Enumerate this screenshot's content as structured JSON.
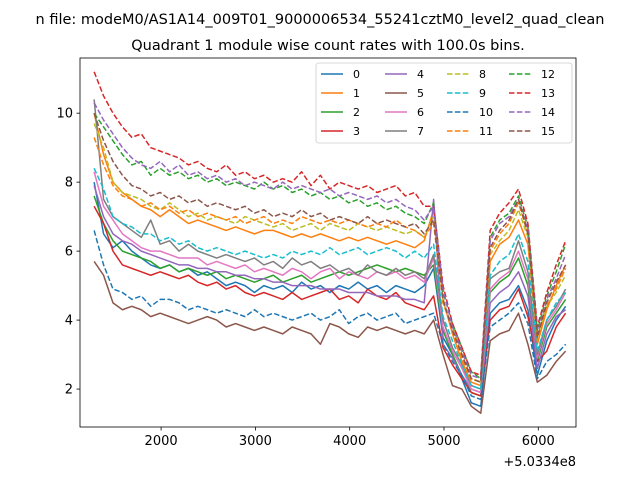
{
  "chart_data": {
    "type": "line",
    "title_top": "n file: modeM0/AS1A14_009T01_9000006534_55241cztM0_level2_quad_clean",
    "title": "Quadrant 1 module wise count rates with 100.0s bins.",
    "xlabel": "",
    "ylabel": "",
    "x_offset_label": "+5.0334e8",
    "xlim": [
      1140,
      6400
    ],
    "ylim": [
      0.9,
      11.6
    ],
    "xticks": [
      2000,
      3000,
      4000,
      5000,
      6000
    ],
    "yticks": [
      2,
      4,
      6,
      8,
      10
    ],
    "grid": false,
    "legend_placement": "upper-right",
    "x": [
      1290,
      1390,
      1490,
      1590,
      1690,
      1790,
      1890,
      1990,
      2090,
      2190,
      2290,
      2390,
      2490,
      2590,
      2690,
      2790,
      2890,
      2990,
      3090,
      3190,
      3290,
      3390,
      3490,
      3590,
      3690,
      3790,
      3890,
      3990,
      4090,
      4190,
      4290,
      4390,
      4490,
      4590,
      4690,
      4790,
      4890,
      4990,
      5090,
      5190,
      5290,
      5390,
      5490,
      5590,
      5690,
      5790,
      5890,
      5990,
      6090,
      6190,
      6290
    ],
    "series": [
      {
        "name": "0",
        "color": "#1f77b4",
        "dash": "solid",
        "values": [
          8.0,
          6.5,
          6.1,
          6.3,
          6.0,
          5.8,
          5.6,
          5.5,
          5.6,
          5.4,
          5.5,
          5.3,
          5.4,
          5.2,
          5.0,
          5.1,
          5.0,
          4.8,
          5.0,
          4.9,
          5.0,
          4.8,
          5.1,
          4.9,
          5.0,
          4.8,
          5.0,
          4.9,
          5.1,
          4.9,
          5.0,
          4.8,
          5.0,
          4.9,
          4.8,
          5.0,
          5.5,
          3.5,
          3.0,
          2.3,
          1.6,
          1.5,
          4.2,
          4.5,
          4.6,
          5.0,
          4.3,
          2.4,
          3.4,
          4.0,
          4.4
        ]
      },
      {
        "name": "1",
        "color": "#ff7f0e",
        "dash": "solid",
        "values": [
          10.0,
          8.8,
          8.0,
          7.7,
          7.5,
          7.3,
          7.2,
          7.0,
          7.2,
          7.0,
          6.8,
          6.9,
          6.8,
          6.7,
          6.6,
          6.7,
          6.6,
          6.5,
          6.6,
          6.6,
          6.5,
          6.4,
          6.5,
          6.4,
          6.5,
          6.4,
          6.3,
          6.4,
          6.3,
          6.4,
          6.3,
          6.2,
          6.3,
          6.2,
          6.1,
          6.3,
          7.2,
          4.6,
          3.6,
          2.8,
          2.2,
          2.1,
          5.7,
          6.2,
          6.4,
          6.9,
          6.2,
          3.3,
          4.3,
          5.0,
          5.6
        ]
      },
      {
        "name": "2",
        "color": "#2ca02c",
        "dash": "solid",
        "values": [
          7.6,
          6.8,
          6.3,
          6.0,
          5.9,
          5.8,
          5.7,
          5.5,
          5.6,
          5.4,
          5.5,
          5.4,
          5.3,
          5.4,
          5.2,
          5.3,
          5.2,
          5.1,
          5.2,
          5.3,
          5.1,
          5.2,
          5.3,
          5.1,
          5.2,
          5.3,
          5.4,
          5.3,
          5.4,
          5.5,
          5.6,
          5.5,
          5.4,
          5.5,
          5.4,
          5.3,
          5.6,
          3.7,
          3.0,
          2.4,
          1.9,
          1.8,
          4.8,
          5.1,
          5.3,
          5.8,
          5.0,
          2.8,
          3.8,
          4.2,
          4.6
        ]
      },
      {
        "name": "3",
        "color": "#d62728",
        "dash": "solid",
        "values": [
          7.3,
          6.8,
          6.0,
          5.6,
          5.5,
          5.4,
          5.3,
          5.4,
          5.3,
          5.2,
          5.3,
          5.1,
          5.0,
          5.1,
          4.9,
          5.0,
          4.8,
          4.7,
          4.8,
          4.7,
          4.6,
          4.8,
          4.6,
          4.7,
          4.8,
          4.9,
          4.6,
          4.7,
          4.5,
          4.9,
          4.7,
          4.6,
          4.8,
          4.5,
          4.4,
          4.3,
          4.7,
          3.2,
          2.7,
          2.3,
          1.9,
          1.8,
          4.0,
          4.3,
          4.4,
          4.9,
          4.1,
          2.8,
          3.1,
          3.8,
          4.2
        ]
      },
      {
        "name": "4",
        "color": "#9467bd",
        "dash": "solid",
        "values": [
          7.9,
          7.0,
          6.5,
          6.3,
          6.2,
          6.0,
          5.9,
          5.8,
          5.7,
          5.6,
          5.6,
          5.5,
          5.5,
          5.4,
          5.4,
          5.3,
          5.3,
          5.2,
          5.2,
          5.1,
          5.1,
          5.0,
          5.0,
          5.0,
          4.9,
          4.9,
          4.9,
          4.8,
          4.8,
          4.8,
          4.7,
          4.7,
          4.7,
          4.6,
          4.6,
          4.5,
          7.5,
          3.3,
          2.9,
          2.4,
          2.0,
          1.9,
          4.5,
          4.8,
          5.0,
          5.4,
          4.7,
          2.6,
          3.6,
          4.1,
          4.3
        ]
      },
      {
        "name": "5",
        "color": "#8c564b",
        "dash": "solid",
        "values": [
          5.7,
          5.3,
          4.5,
          4.3,
          4.4,
          4.3,
          4.1,
          4.2,
          4.1,
          4.0,
          3.9,
          4.0,
          4.1,
          4.0,
          3.8,
          3.9,
          3.8,
          3.7,
          3.8,
          3.7,
          3.6,
          3.8,
          3.7,
          3.6,
          3.3,
          3.9,
          3.8,
          3.6,
          3.5,
          3.8,
          3.7,
          3.8,
          3.7,
          3.6,
          3.7,
          3.6,
          4.0,
          3.0,
          2.1,
          2.0,
          1.5,
          1.3,
          3.4,
          3.6,
          3.7,
          4.2,
          3.3,
          2.2,
          2.4,
          2.8,
          3.1
        ]
      },
      {
        "name": "6",
        "color": "#e377c2",
        "dash": "solid",
        "values": [
          8.3,
          7.3,
          6.9,
          6.5,
          6.3,
          6.1,
          6.0,
          6.0,
          5.9,
          5.8,
          5.8,
          5.8,
          5.6,
          5.7,
          5.6,
          5.5,
          5.6,
          5.4,
          5.5,
          5.4,
          5.3,
          5.5,
          5.4,
          5.2,
          5.4,
          5.5,
          5.2,
          5.4,
          5.3,
          5.2,
          5.4,
          5.3,
          5.4,
          5.2,
          5.3,
          5.1,
          5.8,
          3.8,
          3.1,
          2.6,
          2.0,
          1.9,
          4.9,
          5.2,
          5.4,
          6.0,
          5.2,
          2.9,
          3.9,
          4.3,
          4.8
        ]
      },
      {
        "name": "7",
        "color": "#7f7f7f",
        "dash": "solid",
        "values": [
          10.4,
          7.5,
          7.0,
          6.8,
          6.6,
          6.4,
          6.9,
          6.2,
          6.3,
          6.0,
          6.2,
          6.0,
          5.9,
          5.8,
          5.9,
          5.8,
          5.7,
          5.8,
          5.6,
          5.7,
          5.5,
          5.8,
          5.6,
          5.7,
          5.5,
          5.6,
          5.4,
          5.5,
          5.3,
          5.6,
          5.4,
          5.3,
          5.5,
          5.3,
          5.4,
          5.2,
          5.9,
          4.0,
          3.2,
          2.7,
          2.1,
          2.0,
          5.2,
          5.4,
          5.5,
          6.3,
          5.4,
          3.0,
          4.0,
          4.4,
          4.9
        ]
      },
      {
        "name": "8",
        "color": "#bcbd22",
        "dash": "dashed",
        "values": [
          9.7,
          9.0,
          8.0,
          7.7,
          7.6,
          7.5,
          7.3,
          7.2,
          7.4,
          7.2,
          7.0,
          7.1,
          6.9,
          7.0,
          6.9,
          6.8,
          7.0,
          6.9,
          6.8,
          6.7,
          6.8,
          6.6,
          6.7,
          6.8,
          6.6,
          6.8,
          6.7,
          6.6,
          6.8,
          6.7,
          6.6,
          6.7,
          6.6,
          6.5,
          6.6,
          6.4,
          7.0,
          4.5,
          3.8,
          3.0,
          2.3,
          2.2,
          5.9,
          6.3,
          6.6,
          7.2,
          6.4,
          3.5,
          4.4,
          4.8,
          5.3
        ]
      },
      {
        "name": "9",
        "color": "#17becf",
        "dash": "dashed",
        "values": [
          8.4,
          7.8,
          7.0,
          6.8,
          6.7,
          6.5,
          6.5,
          6.3,
          6.4,
          6.2,
          6.3,
          6.1,
          6.0,
          6.1,
          6.0,
          5.9,
          6.0,
          5.9,
          5.8,
          5.9,
          5.8,
          6.0,
          5.9,
          6.0,
          5.9,
          6.1,
          5.9,
          6.0,
          6.1,
          5.9,
          6.0,
          6.1,
          6.0,
          5.8,
          6.0,
          5.8,
          6.2,
          4.1,
          3.4,
          2.7,
          2.1,
          2.0,
          5.3,
          5.7,
          5.9,
          6.5,
          5.7,
          3.1,
          4.0,
          4.5,
          4.8
        ]
      },
      {
        "name": "10",
        "color": "#1f77b4",
        "dash": "dashed",
        "values": [
          6.6,
          5.6,
          4.9,
          4.8,
          4.6,
          4.7,
          4.4,
          4.6,
          4.6,
          4.5,
          4.3,
          4.4,
          4.3,
          4.2,
          4.3,
          4.2,
          4.1,
          4.3,
          4.1,
          4.2,
          4.1,
          4.0,
          4.1,
          4.2,
          4.0,
          4.1,
          4.3,
          3.9,
          4.1,
          4.2,
          4.0,
          4.1,
          4.2,
          3.9,
          4.0,
          4.1,
          4.2,
          3.3,
          2.8,
          2.4,
          1.8,
          1.7,
          3.8,
          4.0,
          4.2,
          4.5,
          3.9,
          2.3,
          2.8,
          3.0,
          3.3
        ]
      },
      {
        "name": "11",
        "color": "#ff7f0e",
        "dash": "dashed",
        "values": [
          9.3,
          8.5,
          7.9,
          7.6,
          7.5,
          7.3,
          7.4,
          7.2,
          7.3,
          7.1,
          7.2,
          7.0,
          7.1,
          7.0,
          6.9,
          7.0,
          6.8,
          6.9,
          7.0,
          6.8,
          6.9,
          6.8,
          7.0,
          6.9,
          6.8,
          6.9,
          6.8,
          6.9,
          6.8,
          6.7,
          6.8,
          6.7,
          6.9,
          6.7,
          6.6,
          6.4,
          6.8,
          4.5,
          3.7,
          2.9,
          2.3,
          2.2,
          6.0,
          6.5,
          6.8,
          7.4,
          6.5,
          3.4,
          4.4,
          4.9,
          5.5
        ]
      },
      {
        "name": "12",
        "color": "#2ca02c",
        "dash": "dashed",
        "values": [
          10.0,
          9.6,
          9.2,
          8.8,
          8.5,
          8.6,
          8.2,
          8.4,
          8.2,
          8.3,
          8.1,
          8.2,
          8.0,
          8.1,
          7.9,
          8.0,
          7.9,
          7.8,
          8.0,
          7.8,
          7.9,
          7.7,
          7.8,
          7.6,
          7.7,
          7.5,
          7.6,
          7.4,
          7.5,
          7.3,
          7.4,
          7.2,
          7.3,
          7.1,
          7.0,
          6.8,
          7.4,
          4.8,
          3.9,
          3.2,
          2.5,
          2.3,
          6.4,
          6.9,
          7.1,
          7.6,
          6.7,
          3.7,
          4.7,
          5.4,
          6.2
        ]
      },
      {
        "name": "13",
        "color": "#d62728",
        "dash": "dashed",
        "values": [
          11.2,
          10.5,
          10.0,
          9.6,
          9.3,
          9.4,
          9.0,
          8.9,
          8.8,
          8.7,
          8.5,
          8.6,
          8.4,
          8.3,
          8.5,
          8.2,
          8.3,
          8.1,
          8.2,
          8.0,
          8.1,
          8.0,
          8.3,
          7.9,
          8.2,
          7.8,
          8.0,
          7.9,
          7.8,
          7.9,
          7.7,
          7.8,
          7.9,
          7.6,
          7.7,
          7.3,
          7.3,
          5.0,
          3.9,
          3.2,
          2.5,
          2.4,
          6.6,
          7.1,
          7.4,
          7.8,
          6.8,
          3.8,
          4.8,
          5.6,
          6.3
        ]
      },
      {
        "name": "14",
        "color": "#9467bd",
        "dash": "dashed",
        "values": [
          10.3,
          9.8,
          9.4,
          9.0,
          8.7,
          8.5,
          8.4,
          8.6,
          8.3,
          8.5,
          8.2,
          8.3,
          8.1,
          8.2,
          8.0,
          8.1,
          7.9,
          8.0,
          7.9,
          7.8,
          8.0,
          7.8,
          7.9,
          7.8,
          7.7,
          7.8,
          7.6,
          7.7,
          7.6,
          7.5,
          7.6,
          7.4,
          7.5,
          7.3,
          7.2,
          6.9,
          7.3,
          4.9,
          3.8,
          3.1,
          2.4,
          2.3,
          6.3,
          6.8,
          7.0,
          7.5,
          6.6,
          3.6,
          4.6,
          5.2,
          5.9
        ]
      },
      {
        "name": "15",
        "color": "#8c564b",
        "dash": "dashed",
        "values": [
          10.0,
          9.2,
          8.6,
          8.2,
          7.9,
          7.8,
          7.6,
          7.7,
          7.5,
          7.6,
          7.4,
          7.5,
          7.3,
          7.4,
          7.3,
          7.2,
          7.3,
          7.1,
          7.2,
          7.0,
          7.1,
          7.0,
          7.2,
          7.0,
          7.1,
          6.9,
          7.0,
          6.9,
          6.8,
          7.0,
          6.8,
          6.9,
          6.8,
          6.7,
          6.8,
          6.5,
          6.9,
          4.6,
          3.7,
          3.0,
          2.3,
          2.2,
          6.1,
          6.6,
          6.9,
          7.5,
          6.5,
          3.5,
          4.5,
          5.1,
          5.6
        ]
      }
    ]
  }
}
